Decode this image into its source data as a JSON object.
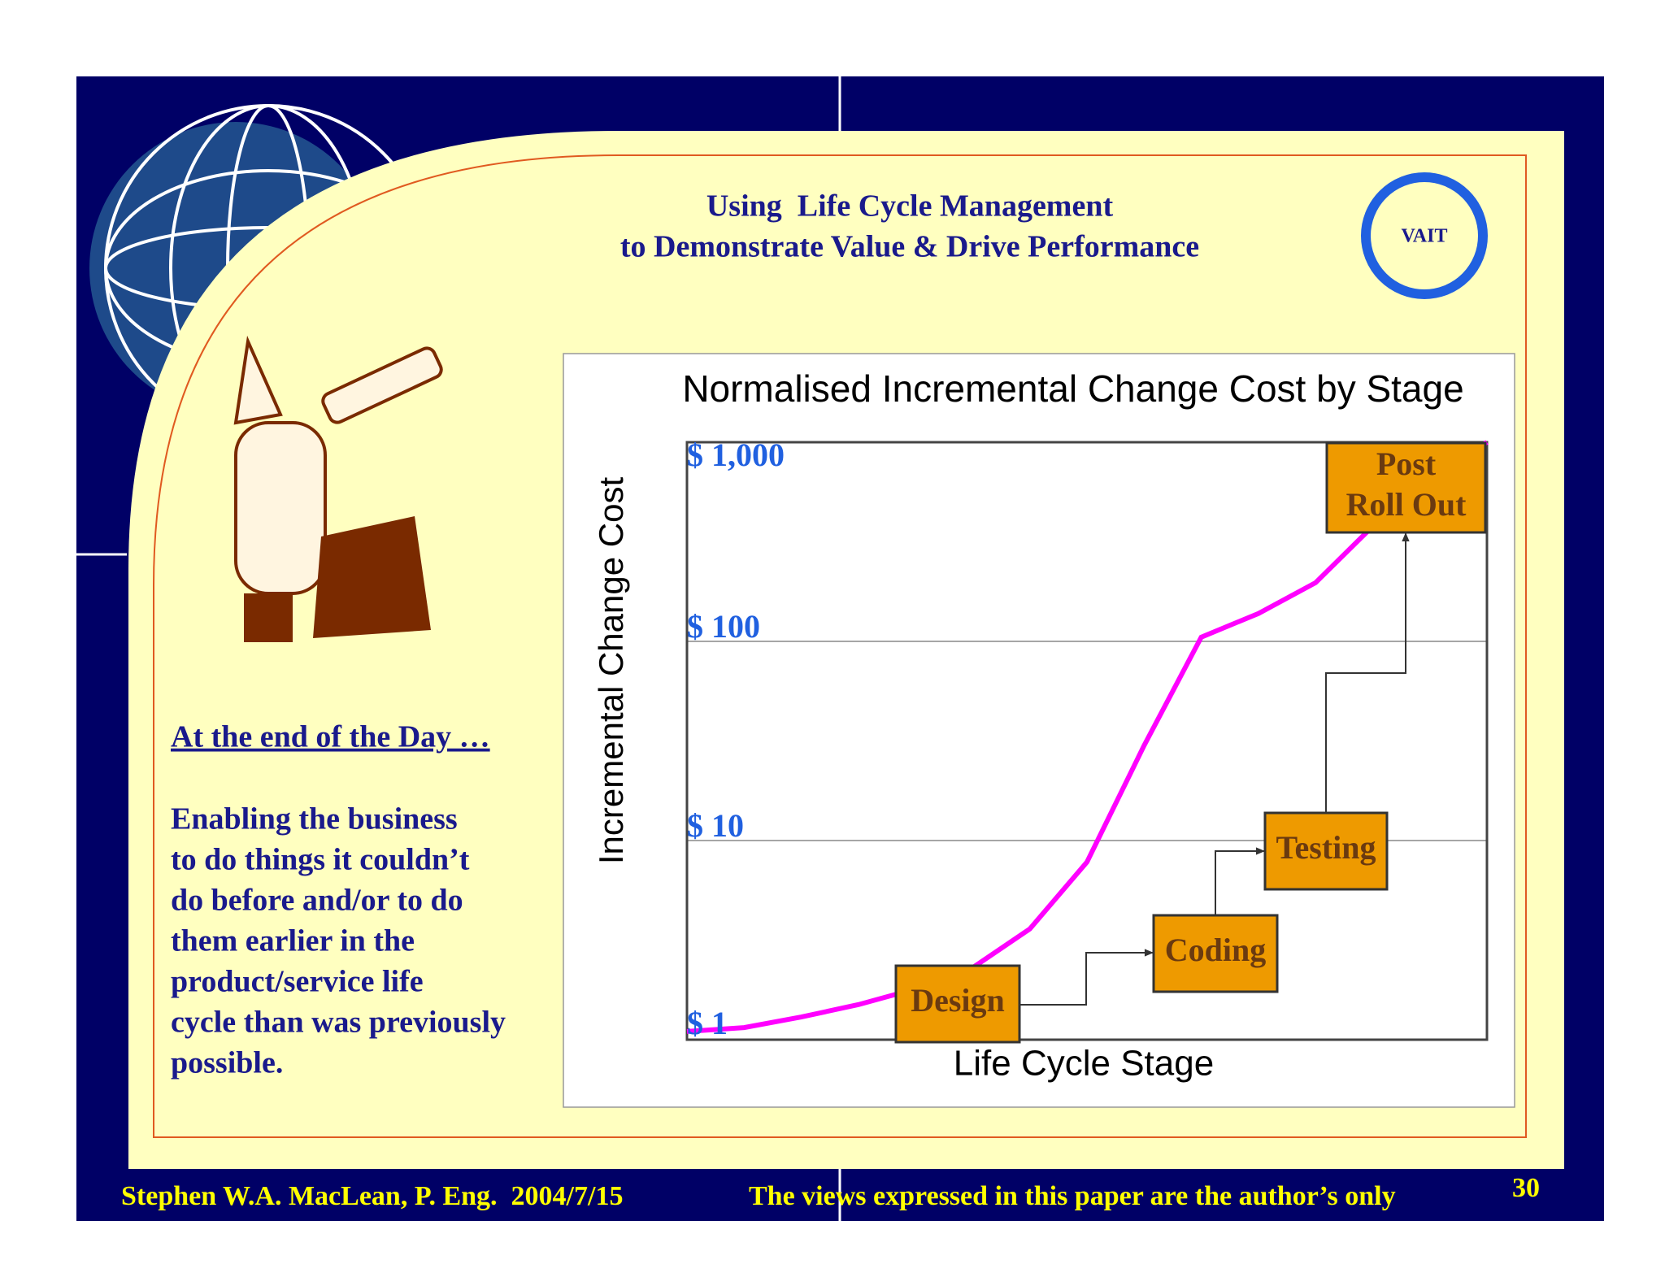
{
  "header": {
    "title_lines": [
      "Using  Life Cycle Management",
      "to Demonstrate Value & Drive Performance"
    ],
    "logo": "VAIT"
  },
  "sidebar": {
    "heading": "At the end of the Day …",
    "lines": [
      "Enabling the business",
      "to do things it couldn’t",
      "do before and/or to do",
      "them earlier in the",
      "product/service life",
      "cycle than was previously",
      "possible."
    ]
  },
  "footer": {
    "author": "Stephen W.A. MacLean, P. Eng.  2004/7/15",
    "disclaimer": "The views expressed in this paper are the author’s only",
    "page": "30"
  },
  "chart_data": {
    "type": "line",
    "title": "Normalised Incremental Change Cost by Stage",
    "x_label": "Life Cycle Stage",
    "y_label": "Incremental Change Cost",
    "log_scale": true,
    "grid": true,
    "ylim": [
      1,
      1000
    ],
    "yticks": [
      {
        "value": 1,
        "label": "$ 1"
      },
      {
        "value": 10,
        "label": "$ 10"
      },
      {
        "value": 100,
        "label": "$ 100"
      },
      {
        "value": 1000,
        "label": "$ 1,000"
      }
    ],
    "series": [
      {
        "color": "#ff00ff",
        "values": [
          1.1,
          1.15,
          1.3,
          1.5,
          1.8,
          2.3,
          3.6,
          7.8,
          30,
          105,
          138,
          197,
          378,
          640,
          1000
        ]
      }
    ],
    "stage_labels": [
      [
        "Design"
      ],
      [
        "Coding"
      ],
      [
        "Testing"
      ],
      [
        "Post",
        "Roll Out"
      ]
    ]
  }
}
